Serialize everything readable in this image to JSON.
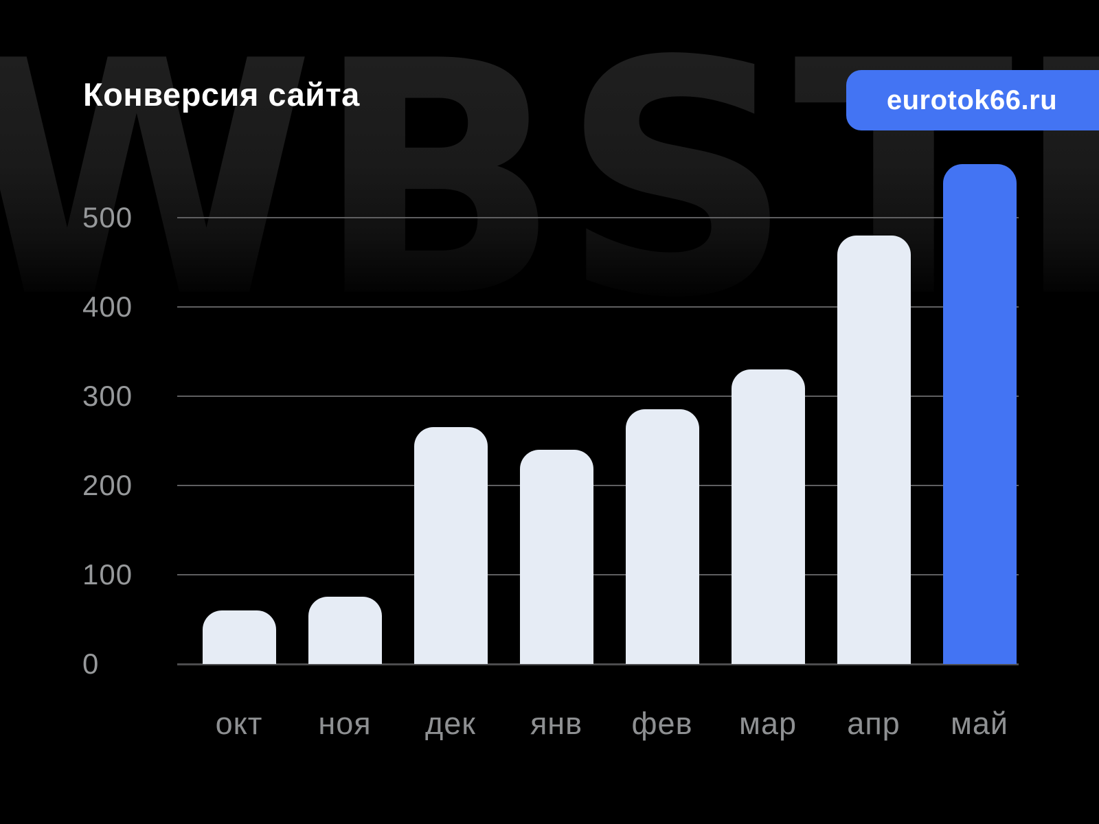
{
  "header": {
    "title": "Конверсия сайта",
    "badge_label": "eurotok66.ru"
  },
  "watermark": {
    "text": "WBSTR"
  },
  "chart_data": {
    "type": "bar",
    "title": "Конверсия сайта",
    "categories": [
      "окт",
      "ноя",
      "дек",
      "янв",
      "фев",
      "мар",
      "апр",
      "май"
    ],
    "values": [
      60,
      75,
      265,
      240,
      285,
      330,
      480,
      560
    ],
    "yticks": [
      0,
      100,
      200,
      300,
      400,
      500
    ],
    "ylim": [
      0,
      560
    ],
    "grid": true,
    "legend": "none",
    "xlabel": "",
    "ylabel": "",
    "bar_color": "#e6ecf5",
    "accent_color": "#4374f3",
    "accent_index": 7,
    "highlighted_category": "май"
  },
  "colors": {
    "background": "#000000",
    "badge": "#4374f3",
    "title": "#ffffff",
    "axis_label": "#97999b",
    "watermark": "#181818"
  }
}
